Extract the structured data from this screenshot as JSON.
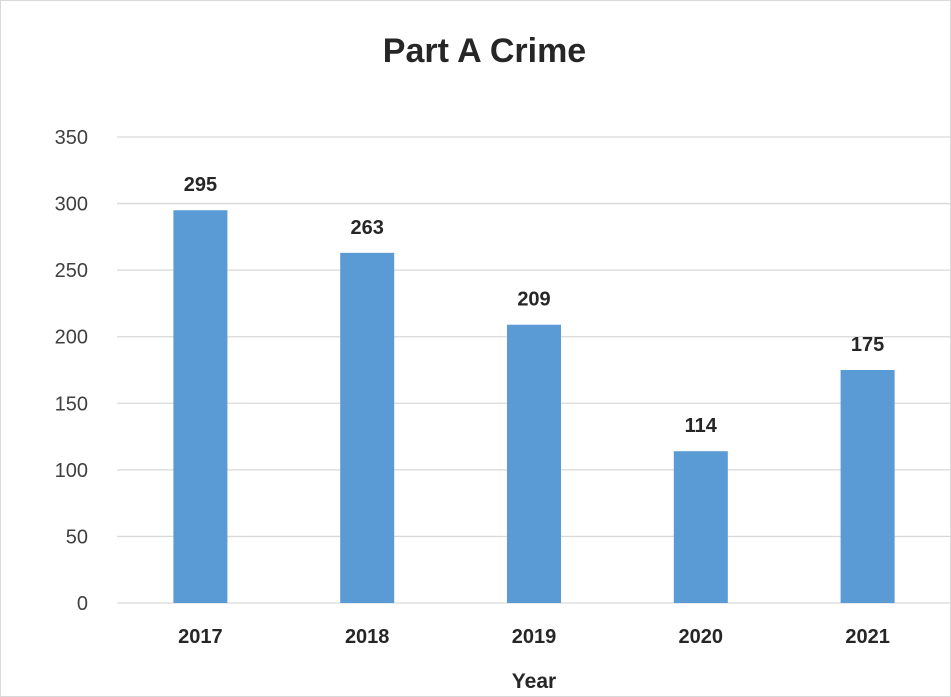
{
  "chart_data": {
    "type": "bar",
    "title": "Part A Crime",
    "xlabel": "Year",
    "ylabel": "",
    "categories": [
      "2017",
      "2018",
      "2019",
      "2020",
      "2021"
    ],
    "values": [
      295,
      263,
      209,
      114,
      175
    ],
    "ylim": [
      0,
      350
    ],
    "yticks": [
      0,
      50,
      100,
      150,
      200,
      250,
      300,
      350
    ],
    "grid": true,
    "legend": "none",
    "bar_color": "#5b9bd5",
    "grid_color": "#d9d9d9"
  }
}
